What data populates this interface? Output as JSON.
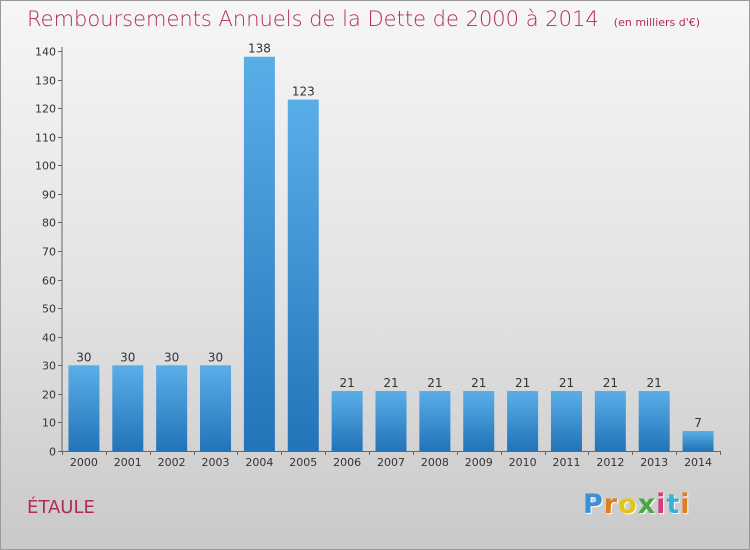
{
  "page": {
    "title": "Remboursements Annuels de la Dette de 2000 à 2014",
    "subtitle": "(en milliers d'€)",
    "town": "ÉTAULE",
    "logo": {
      "text": "Proxiti",
      "letter_colors": [
        "#3a8fd6",
        "#e07b1f",
        "#e0c51f",
        "#4aa843",
        "#d63a7a",
        "#3ab0d6",
        "#e07b1f"
      ]
    }
  },
  "colors": {
    "title": "#b22a5a",
    "bar_top": "#5aaee8",
    "bar_bottom": "#2373b8"
  },
  "chart_data": {
    "type": "bar",
    "title": "Remboursements Annuels de la Dette de 2000 à 2014",
    "subtitle": "(en milliers d'€)",
    "categories": [
      "2000",
      "2001",
      "2002",
      "2003",
      "2004",
      "2005",
      "2006",
      "2007",
      "2008",
      "2009",
      "2010",
      "2011",
      "2012",
      "2013",
      "2014"
    ],
    "values": [
      30,
      30,
      30,
      30,
      138,
      123,
      21,
      21,
      21,
      21,
      21,
      21,
      21,
      21,
      7
    ],
    "ylim": [
      0,
      140
    ],
    "yticks": [
      0,
      10,
      20,
      30,
      40,
      50,
      60,
      70,
      80,
      90,
      100,
      110,
      120,
      130,
      140
    ],
    "grid": false,
    "data_labels": true
  }
}
